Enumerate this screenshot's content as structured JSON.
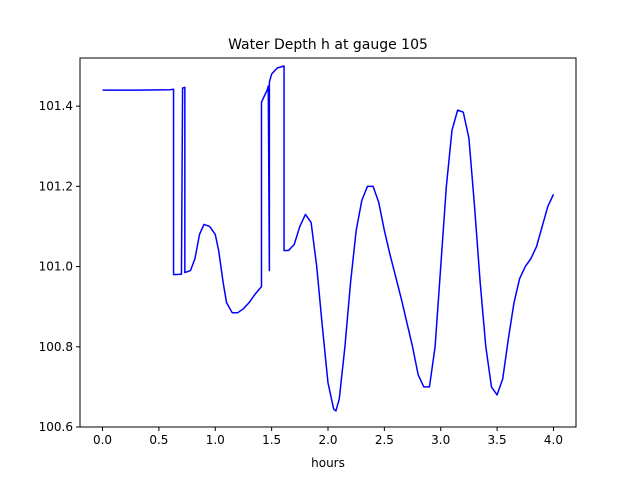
{
  "chart_data": {
    "type": "line",
    "title": "Water Depth h at gauge 105",
    "xlabel": "hours",
    "ylabel": "",
    "xlim": [
      -0.2,
      4.2
    ],
    "ylim": [
      100.6,
      101.52
    ],
    "xticks": [
      0.0,
      0.5,
      1.0,
      1.5,
      2.0,
      2.5,
      3.0,
      3.5,
      4.0
    ],
    "xtick_labels": [
      "0.0",
      "0.5",
      "1.0",
      "1.5",
      "2.0",
      "2.5",
      "3.0",
      "3.5",
      "4.0"
    ],
    "yticks": [
      100.6,
      100.8,
      101.0,
      101.2,
      101.4
    ],
    "ytick_labels": [
      "100.6",
      "100.8",
      "101.0",
      "101.2",
      "101.4"
    ],
    "grid": false,
    "series": [
      {
        "color": "#0000ff",
        "x": [
          0.0,
          0.3,
          0.6,
          0.63,
          0.63,
          0.7,
          0.71,
          0.73,
          0.73,
          0.78,
          0.82,
          0.86,
          0.9,
          0.95,
          1.0,
          1.03,
          1.07,
          1.1,
          1.15,
          1.2,
          1.25,
          1.3,
          1.35,
          1.41,
          1.41,
          1.46,
          1.47,
          1.48,
          1.48,
          1.5,
          1.55,
          1.61,
          1.61,
          1.65,
          1.7,
          1.75,
          1.8,
          1.85,
          1.9,
          1.95,
          2.0,
          2.05,
          2.07,
          2.1,
          2.15,
          2.2,
          2.25,
          2.3,
          2.35,
          2.4,
          2.45,
          2.5,
          2.55,
          2.6,
          2.65,
          2.7,
          2.75,
          2.8,
          2.85,
          2.9,
          2.95,
          3.0,
          3.05,
          3.1,
          3.15,
          3.2,
          3.25,
          3.3,
          3.35,
          3.4,
          3.45,
          3.5,
          3.55,
          3.6,
          3.65,
          3.7,
          3.75,
          3.8,
          3.85,
          3.9,
          3.95,
          4.0
        ],
        "y": [
          101.44,
          101.44,
          101.441,
          101.442,
          100.98,
          100.981,
          101.445,
          101.447,
          100.985,
          100.99,
          101.02,
          101.08,
          101.105,
          101.1,
          101.08,
          101.04,
          100.96,
          100.91,
          100.885,
          100.885,
          100.895,
          100.91,
          100.93,
          100.95,
          101.41,
          101.44,
          101.45,
          100.99,
          101.46,
          101.48,
          101.495,
          101.5,
          101.04,
          101.04,
          101.055,
          101.1,
          101.13,
          101.11,
          101.0,
          100.85,
          100.71,
          100.645,
          100.64,
          100.67,
          100.8,
          100.96,
          101.09,
          101.165,
          101.2,
          101.2,
          101.16,
          101.09,
          101.03,
          100.975,
          100.92,
          100.86,
          100.8,
          100.73,
          100.7,
          100.7,
          100.8,
          101.0,
          101.2,
          101.34,
          101.39,
          101.385,
          101.32,
          101.15,
          100.96,
          100.8,
          100.7,
          100.68,
          100.72,
          100.82,
          100.91,
          100.97,
          101.0,
          101.02,
          101.05,
          101.1,
          101.15,
          101.18
        ]
      }
    ]
  }
}
